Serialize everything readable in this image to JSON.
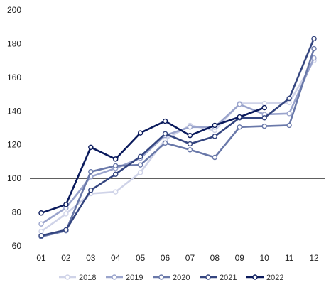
{
  "chart_data": {
    "type": "line",
    "x": [
      "01",
      "02",
      "03",
      "04",
      "05",
      "06",
      "07",
      "08",
      "09",
      "10",
      "11",
      "12"
    ],
    "ylim": [
      60,
      200
    ],
    "yticks": [
      60,
      80,
      100,
      120,
      140,
      160,
      180,
      200
    ],
    "reference_line": 100,
    "grid": false,
    "legend_position": "bottom",
    "series": [
      {
        "name": "2018",
        "color": "#cfd3e8",
        "values": [
          68.5,
          79,
          91,
          92,
          103.5,
          123,
          131.5,
          128.5,
          144.5,
          144.5,
          145,
          170
        ]
      },
      {
        "name": "2019",
        "color": "#9aa4cc",
        "values": [
          73,
          82.5,
          101,
          106,
          112,
          125.5,
          130.5,
          130.5,
          144,
          138,
          138.5,
          171.5
        ]
      },
      {
        "name": "2020",
        "color": "#6978a9",
        "values": [
          65.5,
          69,
          104,
          107.5,
          108,
          121,
          117,
          112.5,
          130.5,
          131,
          131.5,
          177
        ]
      },
      {
        "name": "2021",
        "color": "#34457f",
        "values": [
          66,
          69.5,
          93,
          102.5,
          113,
          126.5,
          120.5,
          125,
          136,
          136,
          147.5,
          183
        ]
      },
      {
        "name": "2022",
        "color": "#0a1a5c",
        "values": [
          79.5,
          84.5,
          118.5,
          111.5,
          127,
          134,
          125.5,
          131.5,
          136.5,
          142,
          null,
          null
        ]
      }
    ]
  }
}
